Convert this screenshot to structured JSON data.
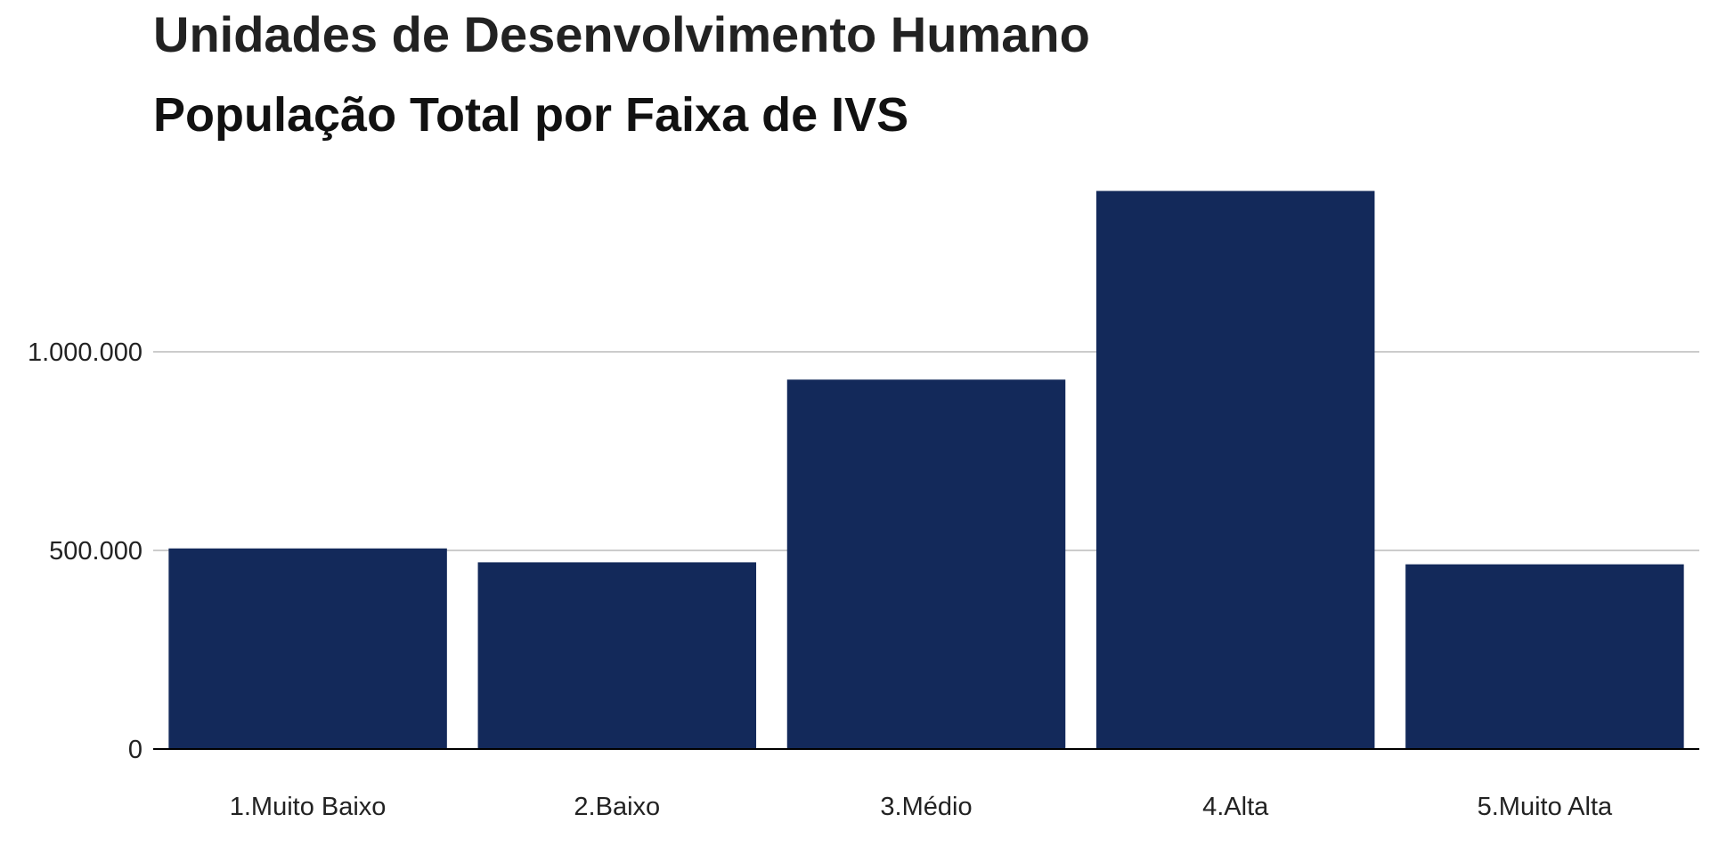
{
  "chart_data": {
    "type": "bar",
    "title": "Unidades de Desenvolvimento Humano",
    "subtitle": "População Total por Faixa de IVS",
    "xlabel": "",
    "ylabel": "",
    "categories": [
      "1.Muito Baixo",
      "2.Baixo",
      "3.Médio",
      "4.Alta",
      "5.Muito Alta"
    ],
    "values": [
      505000,
      470000,
      930000,
      1405000,
      465000
    ],
    "ylim": [
      0,
      1450000
    ],
    "yticks": [
      0,
      500000,
      1000000
    ],
    "ytick_labels": [
      "0",
      "500.000",
      "1.000.000"
    ],
    "grid": true,
    "bar_color": "#13295a",
    "grid_color": "#cccccc",
    "axis_color": "#000000"
  }
}
